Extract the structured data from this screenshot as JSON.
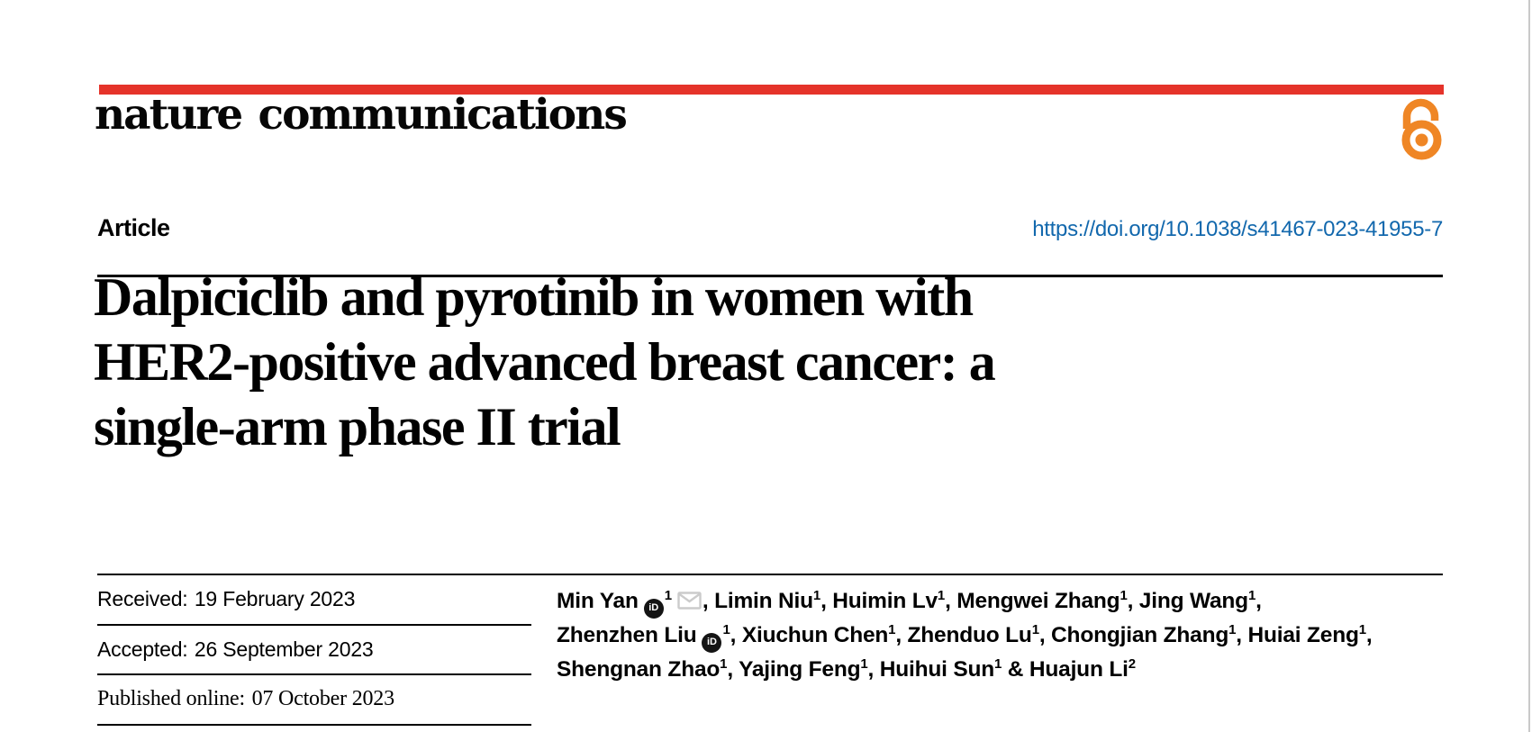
{
  "journal": {
    "logo": "nature communications"
  },
  "colors": {
    "accent_red": "#e5332a",
    "link_blue": "#1268ad",
    "open_access_orange": "#ef8625",
    "mail_gray": "#cbcbcb"
  },
  "article": {
    "label": "Article",
    "doi": "https://doi.org/10.1038/s41467-023-41955-7",
    "title_lines": [
      "Dalpiciclib and pyrotinib in women with",
      "HER2-positive advanced breast cancer: a",
      "single-arm phase II trial"
    ]
  },
  "dates": [
    {
      "label": "Received:",
      "value": "19 February 2023"
    },
    {
      "label": "Accepted:",
      "value": "26 September 2023"
    },
    {
      "label": "Published online:",
      "value": "07 October 2023"
    }
  ],
  "icons": {
    "orcid": "iD",
    "open_access": "open-access-padlock",
    "mail": "envelope"
  },
  "authors": {
    "lines": [
      [
        {
          "t": "text",
          "v": "Min Yan"
        },
        {
          "t": "orcid"
        },
        {
          "t": "sup",
          "v": "1"
        },
        {
          "t": "mail"
        },
        {
          "t": "text",
          "v": ", Limin Niu"
        },
        {
          "t": "sup",
          "v": "1"
        },
        {
          "t": "text",
          "v": ", Huimin Lv"
        },
        {
          "t": "sup",
          "v": "1"
        },
        {
          "t": "text",
          "v": ", Mengwei Zhang"
        },
        {
          "t": "sup",
          "v": "1"
        },
        {
          "t": "text",
          "v": ", Jing Wang"
        },
        {
          "t": "sup",
          "v": "1"
        },
        {
          "t": "text",
          "v": ","
        }
      ],
      [
        {
          "t": "text",
          "v": "Zhenzhen Liu"
        },
        {
          "t": "orcid"
        },
        {
          "t": "sup",
          "v": "1"
        },
        {
          "t": "text",
          "v": ", Xiuchun Chen"
        },
        {
          "t": "sup",
          "v": "1"
        },
        {
          "t": "text",
          "v": ", Zhenduo Lu"
        },
        {
          "t": "sup",
          "v": "1"
        },
        {
          "t": "text",
          "v": ", Chongjian Zhang"
        },
        {
          "t": "sup",
          "v": "1"
        },
        {
          "t": "text",
          "v": ", Huiai Zeng"
        },
        {
          "t": "sup",
          "v": "1"
        },
        {
          "t": "text",
          "v": ","
        }
      ],
      [
        {
          "t": "text",
          "v": "Shengnan Zhao"
        },
        {
          "t": "sup",
          "v": "1"
        },
        {
          "t": "text",
          "v": ", Yajing Feng"
        },
        {
          "t": "sup",
          "v": "1"
        },
        {
          "t": "text",
          "v": ", Huihui Sun"
        },
        {
          "t": "sup",
          "v": "1"
        },
        {
          "t": "text",
          "v": " & Huajun Li"
        },
        {
          "t": "sup",
          "v": "2"
        }
      ]
    ]
  }
}
